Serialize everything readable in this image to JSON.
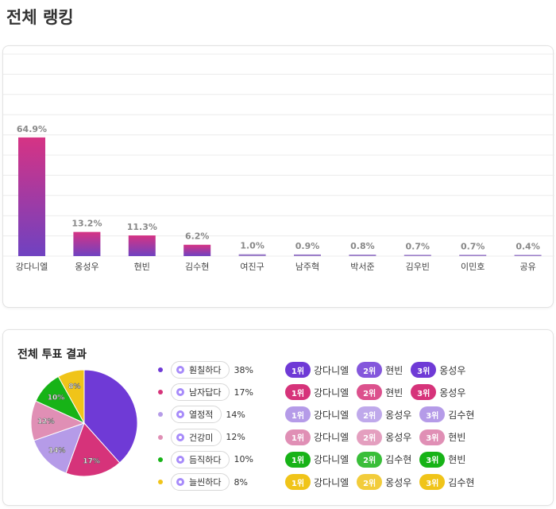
{
  "page": {
    "title": "전체 랭킹"
  },
  "chart_data": [
    {
      "type": "bar",
      "categories": [
        "강다니엘",
        "옹성우",
        "현빈",
        "김수현",
        "여진구",
        "남주혁",
        "박서준",
        "김우빈",
        "이민호",
        "공유"
      ],
      "values": [
        64.9,
        13.2,
        11.3,
        6.2,
        1.0,
        0.9,
        0.8,
        0.7,
        0.7,
        0.4
      ],
      "value_labels": [
        "64.9%",
        "13.2%",
        "11.3%",
        "6.2%",
        "1.0%",
        "0.9%",
        "0.8%",
        "0.7%",
        "0.7%",
        "0.4%"
      ],
      "ylim": [
        0,
        100
      ],
      "grid": true,
      "colors": {
        "bar_top": "#d63384",
        "bar_bottom": "#6f42c1",
        "small_bar": "#9b7ec9"
      }
    },
    {
      "type": "pie",
      "title": "전체 투표 결과",
      "labels": [
        "훤칠하다",
        "남자답다",
        "열정적",
        "건강미",
        "듬직하다",
        "늘씬하다"
      ],
      "values": [
        38,
        17,
        14,
        12,
        10,
        8
      ],
      "value_labels": [
        "",
        "17%",
        "14%",
        "12%",
        "10%",
        "8%"
      ],
      "value_text": [
        "38%",
        "17%",
        "14%",
        "12%",
        "10%",
        "8%"
      ],
      "colors": [
        "#6f3ad6",
        "#d6337a",
        "#b59be8",
        "#e08fb5",
        "#17b317",
        "#f0c419"
      ]
    }
  ],
  "rankings": [
    {
      "items": [
        {
          "rank": "1위",
          "name": "강다니엘"
        },
        {
          "rank": "2위",
          "name": "현빈"
        },
        {
          "rank": "3위",
          "name": "옹성우"
        }
      ]
    },
    {
      "items": [
        {
          "rank": "1위",
          "name": "강다니엘"
        },
        {
          "rank": "2위",
          "name": "현빈"
        },
        {
          "rank": "3위",
          "name": "옹성우"
        }
      ]
    },
    {
      "items": [
        {
          "rank": "1위",
          "name": "강다니엘"
        },
        {
          "rank": "2위",
          "name": "옹성우"
        },
        {
          "rank": "3위",
          "name": "김수현"
        }
      ]
    },
    {
      "items": [
        {
          "rank": "1위",
          "name": "강다니엘"
        },
        {
          "rank": "2위",
          "name": "옹성우"
        },
        {
          "rank": "3위",
          "name": "현빈"
        }
      ]
    },
    {
      "items": [
        {
          "rank": "1위",
          "name": "강다니엘"
        },
        {
          "rank": "2위",
          "name": "김수현"
        },
        {
          "rank": "3위",
          "name": "현빈"
        }
      ]
    },
    {
      "items": [
        {
          "rank": "1위",
          "name": "강다니엘"
        },
        {
          "rank": "2위",
          "name": "옹성우"
        },
        {
          "rank": "3위",
          "name": "김수현"
        }
      ]
    }
  ]
}
